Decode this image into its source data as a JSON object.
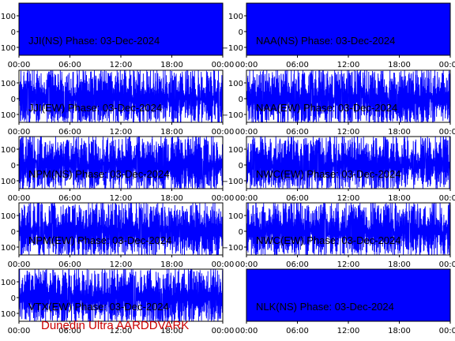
{
  "chart_data": [
    {
      "type": "line",
      "title": "JJI(NS) Phase: 03-Dec-2024",
      "ylim": [
        -150,
        180
      ],
      "yticks": [
        100,
        0,
        -100
      ],
      "x_ticks": [
        "00:00",
        "06:00",
        "12:00",
        "18:00",
        "00:00"
      ],
      "series_color": "#0000ff",
      "density": "saturated"
    },
    {
      "type": "line",
      "title": "NAA(NS) Phase: 03-Dec-2024",
      "ylim": [
        -150,
        180
      ],
      "yticks": [
        100,
        0,
        -100
      ],
      "x_ticks": [
        "00:00",
        "06:00",
        "12:00",
        "18:00",
        "00:00"
      ],
      "series_color": "#0000ff",
      "density": "saturated"
    },
    {
      "type": "line",
      "title": "JJI(EW) Phase: 03-Dec-2024",
      "ylim": [
        -150,
        180
      ],
      "yticks": [
        100,
        0,
        -100
      ],
      "x_ticks": [
        "00:00",
        "06:00",
        "12:00",
        "18:00",
        "00:00"
      ],
      "series_color": "#0000ff",
      "density": "dense"
    },
    {
      "type": "line",
      "title": "NAA(EW) Phase: 03-Dec-2024",
      "ylim": [
        -150,
        180
      ],
      "yticks": [
        100,
        0,
        -100
      ],
      "x_ticks": [
        "00:00",
        "06:00",
        "12:00",
        "18:00",
        "00:00"
      ],
      "series_color": "#0000ff",
      "density": "dense"
    },
    {
      "type": "line",
      "title": "NPM(NS) Phase: 03-Dec-2024",
      "ylim": [
        -150,
        180
      ],
      "yticks": [
        100,
        0,
        -100
      ],
      "x_ticks": [
        "00:00",
        "06:00",
        "12:00",
        "18:00",
        "00:00"
      ],
      "series_color": "#0000ff",
      "density": "dense"
    },
    {
      "type": "line",
      "title": "NWC(EW) Phase: 03-Dec-2024",
      "ylim": [
        -150,
        180
      ],
      "yticks": [
        100,
        0,
        -100
      ],
      "x_ticks": [
        "00:00",
        "06:00",
        "12:00",
        "18:00",
        "00:00"
      ],
      "series_color": "#0000ff",
      "density": "dense"
    },
    {
      "type": "line",
      "title": "NPM(EW) Phase: 03-Dec-2024",
      "ylim": [
        -150,
        180
      ],
      "yticks": [
        100,
        0,
        -100
      ],
      "x_ticks": [
        "00:00",
        "06:00",
        "12:00",
        "18:00",
        "00:00"
      ],
      "series_color": "#0000ff",
      "density": "dense"
    },
    {
      "type": "line",
      "title": "NWC(EW) Phase: 03-Dec-2024",
      "ylim": [
        -150,
        180
      ],
      "yticks": [
        100,
        0,
        -100
      ],
      "x_ticks": [
        "00:00",
        "06:00",
        "12:00",
        "18:00",
        "00:00"
      ],
      "series_color": "#0000ff",
      "density": "dense"
    },
    {
      "type": "line",
      "title": "VTX(EW) Phase: 03-Dec-2024",
      "ylim": [
        -150,
        180
      ],
      "yticks": [
        100,
        0,
        -100
      ],
      "x_ticks": [
        "00:00",
        "06:00",
        "12:00",
        "18:00",
        "00:00"
      ],
      "series_color": "#0000ff",
      "density": "dense"
    },
    {
      "type": "line",
      "title": "NLK(NS) Phase: 03-Dec-2024",
      "ylim": [
        -150,
        180
      ],
      "yticks": [],
      "x_ticks": [
        "00:00",
        "06:00",
        "12:00",
        "18:00",
        "00:00"
      ],
      "series_color": "#0000ff",
      "density": "saturated"
    }
  ],
  "footer": "Dunedin Ultra AARDDVARK"
}
